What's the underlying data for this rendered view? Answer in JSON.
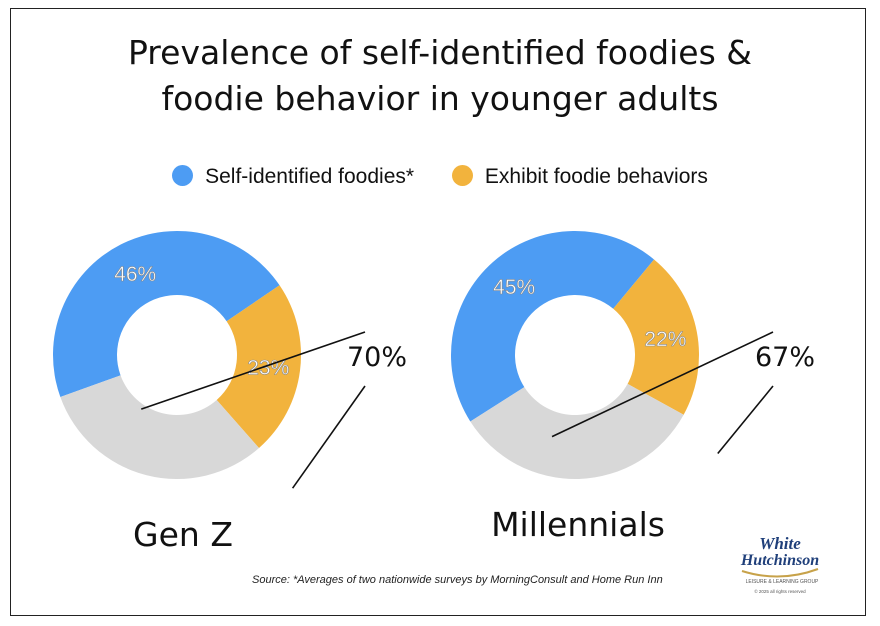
{
  "title_line1": "Prevalence of self-identified foodies &",
  "title_line2": "foodie behavior in younger adults",
  "legend": [
    {
      "label": "Self-identified foodies*",
      "color": "#4d9cf3"
    },
    {
      "label": "Exhibit foodie behaviors",
      "color": "#f2b33d"
    }
  ],
  "colors": {
    "remainder": "#d8d8d8",
    "label": "#ffffff"
  },
  "chart_data": [
    {
      "type": "pie",
      "categories": [
        "Self-identified foodies*",
        "Exhibit foodie behaviors",
        ""
      ],
      "values": [
        46,
        23,
        31
      ],
      "data_labels": [
        "46%",
        "23%",
        ""
      ],
      "total_label": "70%",
      "caption": "Gen Z"
    },
    {
      "type": "pie",
      "categories": [
        "Self-identified foodies*",
        "Exhibit foodie behaviors",
        ""
      ],
      "values": [
        45,
        22,
        33
      ],
      "data_labels": [
        "45%",
        "22%",
        ""
      ],
      "total_label": "67%",
      "caption": "Millennials"
    }
  ],
  "source": "Source: *Averages of two nationwide surveys by MorningConsult and Home Run Inn",
  "logo": {
    "line1": "White",
    "line2": "Hutchinson",
    "tagline": "LEISURE & LEARNING GROUP",
    "copyright": "© 2025 all rights reserved"
  }
}
